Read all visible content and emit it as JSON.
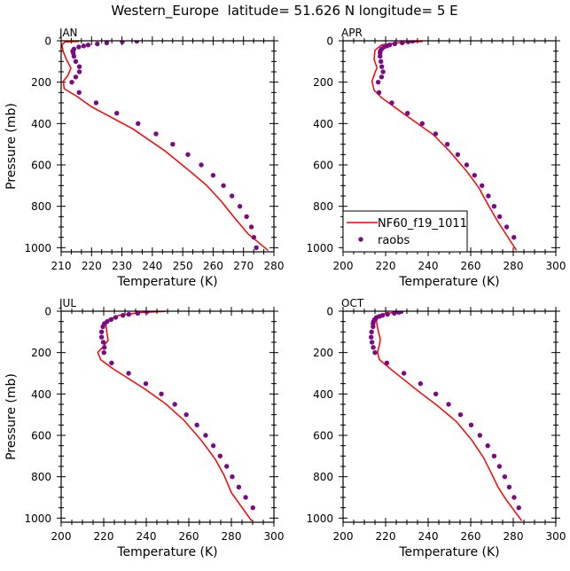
{
  "title": "Western_Europe  latitude= 51.626 N longitude= 5 E",
  "colors": {
    "model": "#ff0000",
    "obs": "#7b0a87",
    "axis": "#000000"
  },
  "legend": {
    "model_label": "NF60_f19_1011",
    "obs_label": "raobs",
    "placement": "bottom-left of APR panel"
  },
  "chart_data": [
    {
      "type": "line",
      "panel": "JAN",
      "title": "JAN",
      "xlabel": "Temperature (K)",
      "ylabel": "Pressure (mb)",
      "xlim": [
        210,
        280
      ],
      "xticks": [
        210,
        220,
        230,
        240,
        250,
        260,
        270,
        280
      ],
      "xminor": 3,
      "ylim": [
        0,
        1020
      ],
      "yticks": [
        0,
        200,
        400,
        600,
        800,
        1000
      ],
      "yinverted": true,
      "model": {
        "name": "NF60_f19_1011",
        "p": [
          3,
          6,
          20,
          53,
          89,
          132,
          168,
          196,
          232,
          268,
          318,
          425,
          533,
          626,
          698,
          776,
          848,
          934,
          1013
        ],
        "T": [
          215.9,
          211.2,
          210.2,
          210.7,
          211.7,
          213.2,
          212.2,
          210.7,
          211.0,
          215.1,
          219.9,
          233.5,
          244.2,
          252.0,
          257.8,
          262.7,
          266.6,
          271.5,
          278.1
        ]
      },
      "obs": {
        "name": "raobs",
        "p": [
          2,
          5,
          10,
          15,
          20,
          25,
          30,
          40,
          50,
          60,
          75,
          100,
          125,
          150,
          175,
          200,
          250,
          300,
          350,
          400,
          450,
          500,
          550,
          600,
          650,
          700,
          750,
          800,
          850,
          900,
          950,
          1000
        ],
        "T": [
          234.9,
          230.1,
          225.0,
          221.9,
          218.9,
          217.4,
          215.8,
          214.2,
          213.8,
          214.0,
          214.2,
          214.8,
          216.0,
          216.0,
          214.8,
          213.5,
          215.9,
          221.5,
          228.3,
          235.3,
          241.2,
          246.7,
          251.7,
          256.1,
          260.0,
          263.4,
          266.2,
          268.8,
          271.0,
          272.6,
          273.4,
          274.2
        ]
      }
    },
    {
      "type": "line",
      "panel": "APR",
      "title": "APR",
      "xlabel": "Temperature (K)",
      "ylabel": "",
      "xlim": [
        200,
        300
      ],
      "xticks": [
        200,
        220,
        240,
        260,
        280,
        300
      ],
      "xminor": 4,
      "ylim": [
        0,
        1020
      ],
      "yticks": [
        0,
        200,
        400,
        600,
        800,
        1000
      ],
      "yinverted": true,
      "model": {
        "name": "NF60_f19_1011",
        "p": [
          3,
          10,
          20,
          46,
          89,
          132,
          146,
          196,
          239,
          275,
          347,
          454,
          533,
          633,
          712,
          791,
          877,
          1013
        ],
        "T": [
          237.5,
          225.0,
          218.1,
          215.0,
          214.6,
          216.0,
          215.3,
          213.6,
          214.6,
          218.1,
          227.8,
          242.4,
          250.0,
          258.3,
          263.9,
          268.1,
          272.9,
          281.5
        ]
      },
      "obs": {
        "name": "raobs",
        "p": [
          2,
          5,
          10,
          15,
          20,
          25,
          30,
          40,
          50,
          60,
          75,
          100,
          125,
          150,
          175,
          200,
          250,
          300,
          350,
          400,
          450,
          500,
          550,
          600,
          650,
          700,
          750,
          800,
          850,
          900,
          950
        ],
        "T": [
          232.6,
          230.6,
          227.8,
          224.3,
          221.9,
          220.6,
          219.2,
          218.1,
          217.5,
          217.4,
          217.4,
          217.8,
          218.2,
          218.8,
          218.1,
          216.5,
          216.9,
          222.9,
          230.3,
          237.2,
          243.5,
          249.0,
          253.9,
          258.1,
          261.8,
          265.3,
          268.3,
          271.0,
          273.6,
          276.9,
          280.3
        ]
      }
    },
    {
      "type": "line",
      "panel": "JUL",
      "title": "JUL",
      "xlabel": "Temperature (K)",
      "ylabel": "Pressure (mb)",
      "xlim": [
        200,
        300
      ],
      "xticks": [
        200,
        220,
        240,
        260,
        280,
        300
      ],
      "xminor": 4,
      "ylim": [
        0,
        1020
      ],
      "yticks": [
        0,
        200,
        400,
        600,
        800,
        1000
      ],
      "yinverted": true,
      "model": {
        "name": "NF60_f19_1011",
        "p": [
          1,
          6,
          20,
          41,
          63,
          99,
          141,
          177,
          199,
          234,
          277,
          377,
          449,
          527,
          627,
          713,
          791,
          877,
          1013
        ],
        "T": [
          249.0,
          238.1,
          227.0,
          222.1,
          221.1,
          221.4,
          222.1,
          219.3,
          217.2,
          218.6,
          224.2,
          239.5,
          249.3,
          257.7,
          266.1,
          272.3,
          276.5,
          280.0,
          289.5
        ]
      },
      "obs": {
        "name": "raobs",
        "p": [
          3,
          10,
          15,
          20,
          30,
          40,
          50,
          60,
          75,
          100,
          125,
          150,
          175,
          200,
          250,
          300,
          350,
          400,
          450,
          500,
          550,
          600,
          650,
          700,
          750,
          800,
          850,
          900,
          950
        ],
        "T": [
          240.2,
          236.0,
          231.8,
          229.0,
          225.6,
          223.5,
          221.6,
          220.3,
          219.6,
          219.0,
          219.0,
          219.8,
          220.3,
          220.1,
          223.7,
          231.7,
          239.8,
          247.1,
          253.4,
          258.8,
          263.8,
          267.9,
          271.5,
          274.7,
          277.8,
          280.4,
          283.5,
          286.7,
          290.1
        ]
      }
    },
    {
      "type": "line",
      "panel": "OCT",
      "title": "OCT",
      "xlabel": "Temperature (K)",
      "ylabel": "",
      "xlim": [
        200,
        300
      ],
      "xticks": [
        200,
        220,
        240,
        260,
        280,
        300
      ],
      "xminor": 4,
      "ylim": [
        0,
        1020
      ],
      "yticks": [
        0,
        200,
        400,
        600,
        800,
        1000
      ],
      "yinverted": true,
      "model": {
        "name": "NF60_f19_1011",
        "p": [
          1,
          13,
          27,
          49,
          91,
          134,
          163,
          199,
          234,
          277,
          391,
          456,
          534,
          620,
          706,
          777,
          849,
          906,
          1013
        ],
        "T": [
          227.6,
          219.2,
          216.4,
          215.7,
          216.4,
          217.5,
          217.1,
          216.2,
          217.1,
          222.0,
          235.9,
          244.3,
          253.3,
          260.3,
          265.9,
          269.4,
          272.8,
          276.3,
          284.0
        ]
      },
      "obs": {
        "name": "raobs",
        "p": [
          2,
          5,
          10,
          15,
          20,
          25,
          30,
          40,
          50,
          60,
          75,
          100,
          125,
          150,
          175,
          200,
          250,
          300,
          350,
          400,
          450,
          500,
          550,
          600,
          650,
          700,
          750,
          800,
          850,
          900,
          950
        ],
        "T": [
          227.3,
          226.2,
          224.1,
          220.9,
          218.5,
          217.1,
          215.7,
          214.8,
          214.3,
          214.1,
          214.1,
          213.4,
          213.2,
          213.6,
          214.2,
          215.0,
          220.6,
          228.6,
          236.4,
          243.6,
          249.6,
          255.2,
          260.2,
          264.3,
          268.0,
          271.0,
          273.5,
          276.0,
          278.1,
          280.4,
          282.6
        ]
      }
    }
  ]
}
